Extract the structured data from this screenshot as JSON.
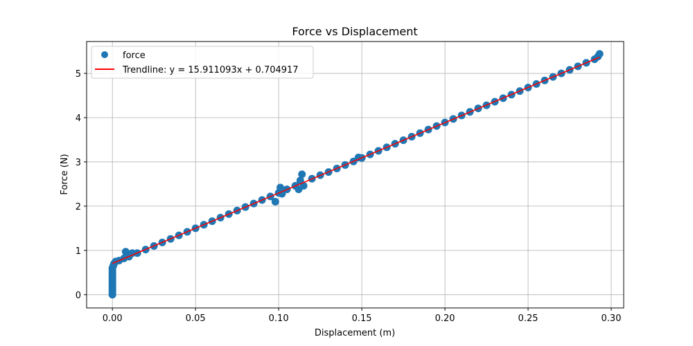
{
  "chart_data": {
    "type": "scatter",
    "title": "Force vs Displacement",
    "xlabel": "Displacement (m)",
    "ylabel": "Force (N)",
    "xlim": [
      -0.0155,
      0.3075
    ],
    "ylim": [
      -0.3,
      5.72
    ],
    "xticks": [
      0.0,
      0.05,
      0.1,
      0.15,
      0.2,
      0.25,
      0.3
    ],
    "xtick_labels": [
      "0.00",
      "0.05",
      "0.10",
      "0.15",
      "0.20",
      "0.25",
      "0.30"
    ],
    "yticks": [
      0,
      1,
      2,
      3,
      4,
      5
    ],
    "ytick_labels": [
      "0",
      "1",
      "2",
      "3",
      "4",
      "5"
    ],
    "grid": true,
    "legend_position": "top-left",
    "series": [
      {
        "name": "force",
        "kind": "scatter",
        "color": "#1f77b4",
        "points": [
          [
            0.0,
            0.0
          ],
          [
            0.0,
            0.05
          ],
          [
            0.0,
            0.1
          ],
          [
            0.0,
            0.15
          ],
          [
            0.0,
            0.2
          ],
          [
            0.0,
            0.25
          ],
          [
            0.0,
            0.3
          ],
          [
            0.0,
            0.35
          ],
          [
            0.0,
            0.4
          ],
          [
            0.0,
            0.45
          ],
          [
            0.0,
            0.5
          ],
          [
            0.0,
            0.55
          ],
          [
            0.0,
            0.6
          ],
          [
            0.0005,
            0.65
          ],
          [
            0.001,
            0.7
          ],
          [
            0.002,
            0.75
          ],
          [
            0.004,
            0.77
          ],
          [
            0.007,
            0.82
          ],
          [
            0.008,
            0.97
          ],
          [
            0.01,
            0.86
          ],
          [
            0.012,
            0.94
          ],
          [
            0.015,
            0.94
          ],
          [
            0.02,
            1.02
          ],
          [
            0.025,
            1.1
          ],
          [
            0.03,
            1.18
          ],
          [
            0.035,
            1.26
          ],
          [
            0.04,
            1.34
          ],
          [
            0.045,
            1.42
          ],
          [
            0.05,
            1.5
          ],
          [
            0.055,
            1.58
          ],
          [
            0.06,
            1.66
          ],
          [
            0.065,
            1.74
          ],
          [
            0.07,
            1.82
          ],
          [
            0.075,
            1.9
          ],
          [
            0.08,
            1.98
          ],
          [
            0.085,
            2.06
          ],
          [
            0.09,
            2.14
          ],
          [
            0.095,
            2.22
          ],
          [
            0.098,
            2.1
          ],
          [
            0.1,
            2.3
          ],
          [
            0.101,
            2.42
          ],
          [
            0.102,
            2.28
          ],
          [
            0.105,
            2.38
          ],
          [
            0.11,
            2.46
          ],
          [
            0.112,
            2.38
          ],
          [
            0.113,
            2.58
          ],
          [
            0.114,
            2.72
          ],
          [
            0.115,
            2.46
          ],
          [
            0.12,
            2.62
          ],
          [
            0.125,
            2.7
          ],
          [
            0.13,
            2.77
          ],
          [
            0.135,
            2.85
          ],
          [
            0.14,
            2.93
          ],
          [
            0.145,
            3.01
          ],
          [
            0.148,
            3.1
          ],
          [
            0.15,
            3.09
          ],
          [
            0.155,
            3.17
          ],
          [
            0.16,
            3.25
          ],
          [
            0.165,
            3.33
          ],
          [
            0.17,
            3.41
          ],
          [
            0.175,
            3.49
          ],
          [
            0.18,
            3.57
          ],
          [
            0.185,
            3.65
          ],
          [
            0.19,
            3.73
          ],
          [
            0.195,
            3.81
          ],
          [
            0.2,
            3.89
          ],
          [
            0.205,
            3.97
          ],
          [
            0.21,
            4.05
          ],
          [
            0.215,
            4.13
          ],
          [
            0.22,
            4.21
          ],
          [
            0.225,
            4.28
          ],
          [
            0.23,
            4.36
          ],
          [
            0.235,
            4.44
          ],
          [
            0.24,
            4.52
          ],
          [
            0.245,
            4.6
          ],
          [
            0.25,
            4.68
          ],
          [
            0.255,
            4.76
          ],
          [
            0.26,
            4.84
          ],
          [
            0.265,
            4.92
          ],
          [
            0.27,
            5.0
          ],
          [
            0.275,
            5.08
          ],
          [
            0.28,
            5.16
          ],
          [
            0.285,
            5.24
          ],
          [
            0.29,
            5.32
          ],
          [
            0.292,
            5.38
          ],
          [
            0.293,
            5.44
          ]
        ]
      },
      {
        "name": "Trendline: y = 15.911093x + 0.704917",
        "kind": "line",
        "color": "#ff0000",
        "slope": 15.911093,
        "intercept": 0.704917,
        "x_range": [
          0.0,
          0.293
        ]
      }
    ]
  }
}
